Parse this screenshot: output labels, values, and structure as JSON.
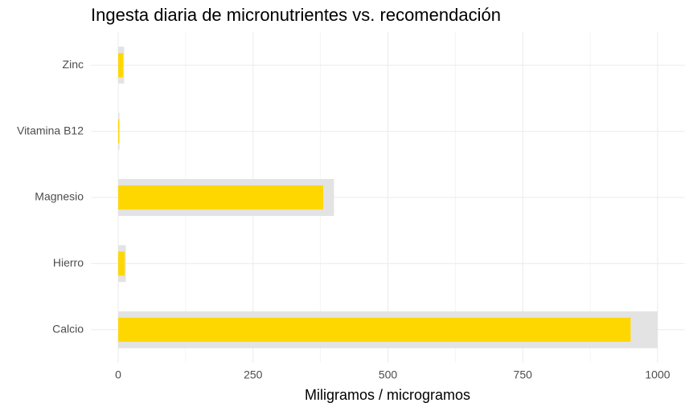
{
  "chart_data": {
    "type": "bullet",
    "title": "Ingesta diaria de micronutrientes vs. recomendación",
    "x_label": "Miligramos / microgramos",
    "categories": [
      "Calcio",
      "Hierro",
      "Magnesio",
      "Vitamina B12",
      "Zinc"
    ],
    "series": [
      {
        "color": "#e3e3e3",
        "values": [
          1000,
          14,
          400,
          2.4,
          11
        ]
      },
      {
        "color": "#ffd700",
        "values": [
          950,
          12,
          380,
          2,
          9
        ]
      }
    ],
    "xlim": [
      -50,
      1050
    ],
    "xticks": [
      0,
      250,
      500,
      750,
      1000
    ],
    "grid": true
  }
}
